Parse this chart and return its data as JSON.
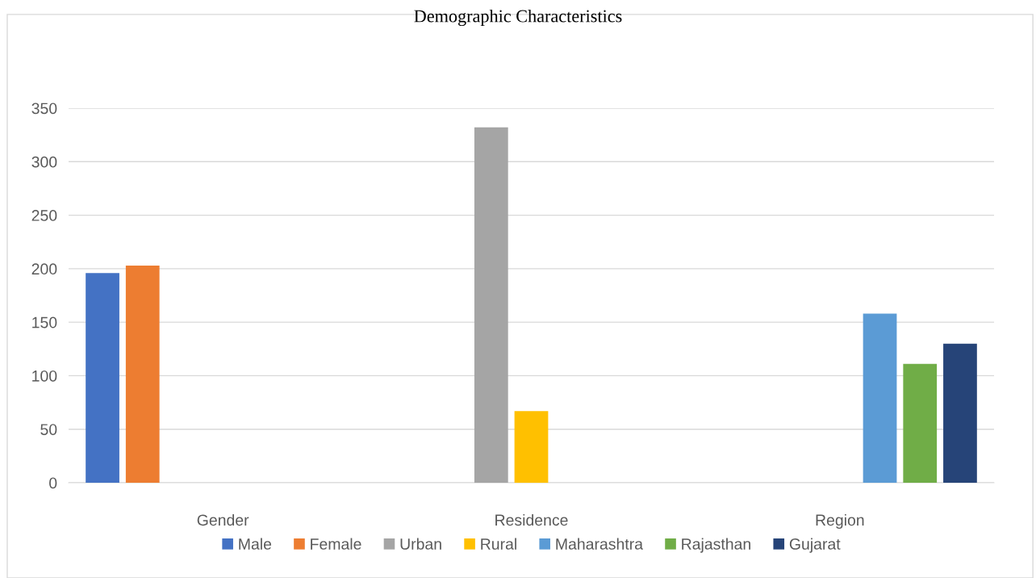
{
  "chart_data": {
    "type": "bar",
    "title": "Demographic Characteristics",
    "categories": [
      "Gender",
      "Residence",
      "Region"
    ],
    "series": [
      {
        "name": "Male",
        "color": "#4472c4",
        "values": [
          196,
          null,
          null
        ]
      },
      {
        "name": "Female",
        "color": "#ed7d31",
        "values": [
          203,
          null,
          null
        ]
      },
      {
        "name": "Urban",
        "color": "#a5a5a5",
        "values": [
          null,
          332,
          null
        ]
      },
      {
        "name": "Rural",
        "color": "#ffc000",
        "values": [
          null,
          67,
          null
        ]
      },
      {
        "name": "Maharashtra",
        "color": "#5b9bd5",
        "values": [
          null,
          null,
          158
        ]
      },
      {
        "name": "Rajasthan",
        "color": "#70ad47",
        "values": [
          null,
          null,
          111
        ]
      },
      {
        "name": "Gujarat",
        "color": "#264478",
        "values": [
          null,
          null,
          130
        ]
      }
    ],
    "ylim": [
      0,
      350
    ],
    "yticks": [
      0,
      50,
      100,
      150,
      200,
      250,
      300,
      350
    ],
    "grid": "y",
    "legend": "bottom"
  }
}
